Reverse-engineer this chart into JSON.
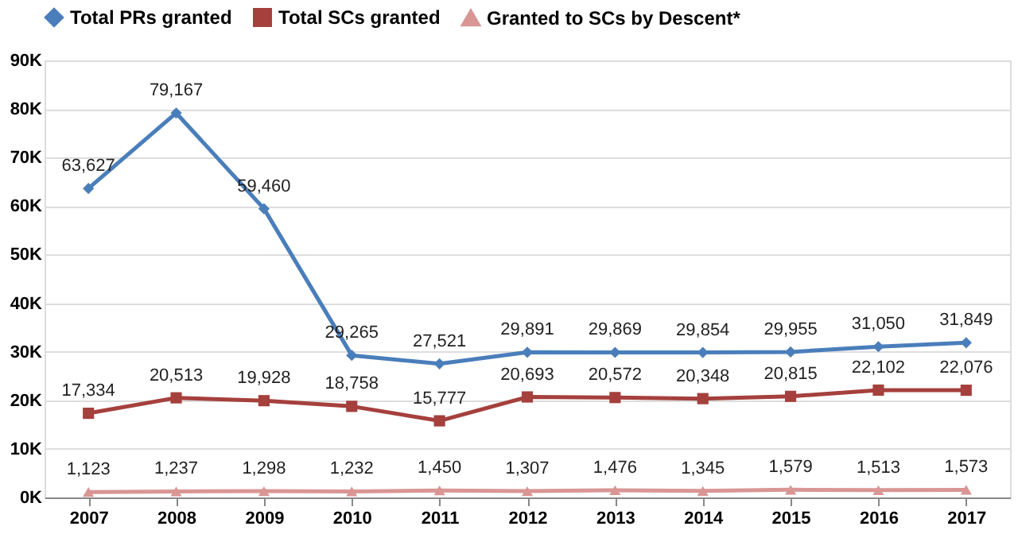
{
  "chart_data": {
    "type": "line",
    "categories": [
      "2007",
      "2008",
      "2009",
      "2010",
      "2011",
      "2012",
      "2013",
      "2014",
      "2015",
      "2016",
      "2017"
    ],
    "series": [
      {
        "name": "Total PRs granted",
        "color": "#4a7ebb",
        "marker": "diamond",
        "values": [
          63627,
          79167,
          59460,
          29265,
          27521,
          29891,
          29869,
          29854,
          29955,
          31050,
          31849
        ],
        "value_labels": [
          "63,627",
          "79,167",
          "59,460",
          "29,265",
          "27,521",
          "29,891",
          "29,869",
          "29,854",
          "29,955",
          "31,050",
          "31,849"
        ]
      },
      {
        "name": "Total SCs granted",
        "color": "#a5403d",
        "marker": "square",
        "values": [
          17334,
          20513,
          19928,
          18758,
          15777,
          20693,
          20572,
          20348,
          20815,
          22102,
          22076
        ],
        "value_labels": [
          "17,334",
          "20,513",
          "19,928",
          "18,758",
          "15,777",
          "20,693",
          "20,572",
          "20,348",
          "20,815",
          "22,102",
          "22,076"
        ]
      },
      {
        "name": "Granted to SCs by Descent*",
        "color": "#d99694",
        "marker": "triangle",
        "values": [
          1123,
          1237,
          1298,
          1232,
          1450,
          1307,
          1476,
          1345,
          1579,
          1513,
          1573
        ],
        "value_labels": [
          "1,123",
          "1,237",
          "1,298",
          "1,232",
          "1,450",
          "1,307",
          "1,476",
          "1,345",
          "1,579",
          "1,513",
          "1,573"
        ]
      }
    ],
    "ylim": [
      0,
      90000
    ],
    "yticks": [
      {
        "value": 0,
        "label": "0K"
      },
      {
        "value": 10000,
        "label": "10K"
      },
      {
        "value": 20000,
        "label": "20K"
      },
      {
        "value": 30000,
        "label": "30K"
      },
      {
        "value": 40000,
        "label": "40K"
      },
      {
        "value": 50000,
        "label": "50K"
      },
      {
        "value": 60000,
        "label": "60K"
      },
      {
        "value": 70000,
        "label": "70K"
      },
      {
        "value": 80000,
        "label": "80K"
      },
      {
        "value": 90000,
        "label": "90K"
      }
    ],
    "grid": "y",
    "legend": "top",
    "data_labels": true
  }
}
